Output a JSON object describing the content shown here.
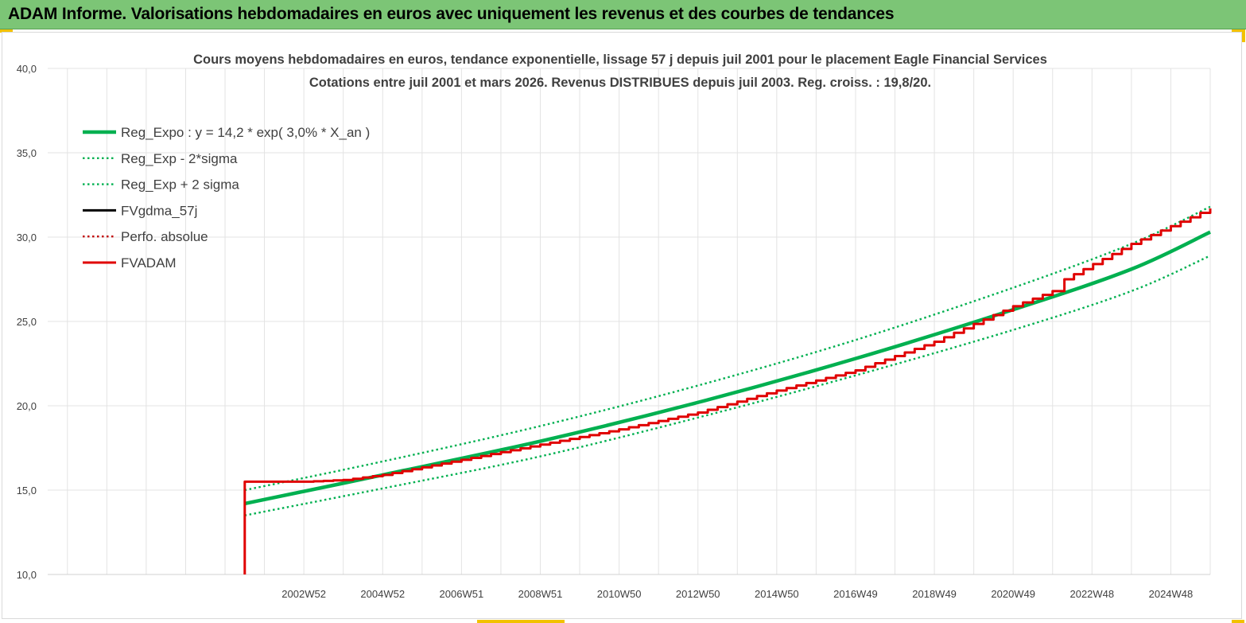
{
  "header": {
    "title": "ADAM Informe. Valorisations hebdomadaires en euros avec uniquement les revenus et des courbes de tendances",
    "background": "#7CC576"
  },
  "chart_data": {
    "type": "line",
    "title_line1": "Cours moyens hebdomadaires en euros, tendance exponentielle, lissage 57 j depuis juil 2001 pour le placement Eagle Financial Services",
    "title_line2": "Cotations entre juil 2001 et mars 2026. Revenus DISTRIBUES  depuis juil 2003. Reg. croiss. : 19,8/20.",
    "ylim": [
      10,
      40
    ],
    "y_ticks": [
      "10,0",
      "15,0",
      "20,0",
      "25,0",
      "30,0",
      "35,0",
      "40,0"
    ],
    "x_tick_labels": [
      "2002W52",
      "2004W52",
      "2006W51",
      "2008W51",
      "2010W50",
      "2012W50",
      "2014W50",
      "2016W49",
      "2018W49",
      "2020W49",
      "2022W48",
      "2024W48"
    ],
    "x_range_years": [
      1996.5,
      2026.0
    ],
    "x_tick_years": [
      2003.0,
      2005.0,
      2007.0,
      2009.0,
      2011.0,
      2013.0,
      2015.0,
      2017.0,
      2019.0,
      2021.0,
      2023.0,
      2025.0
    ],
    "grid": true,
    "legend_position": "top-left",
    "series": [
      {
        "name": "Reg_Expo : y = 14,2 * exp( 3,0% *  X_an )",
        "color": "#00B050",
        "style": "solid-thick",
        "x": [
          2001.5,
          2005,
          2009,
          2013,
          2017,
          2021,
          2024,
          2026
        ],
        "y": [
          14.2,
          15.9,
          17.9,
          20.2,
          22.8,
          25.7,
          28.1,
          30.3
        ]
      },
      {
        "name": "Reg_Exp - 2*sigma",
        "color": "#00B050",
        "style": "dotted",
        "x": [
          2001.5,
          2005,
          2009,
          2013,
          2017,
          2021,
          2024,
          2026
        ],
        "y": [
          13.5,
          15.1,
          17.0,
          19.3,
          21.8,
          24.5,
          26.8,
          28.9
        ]
      },
      {
        "name": "Reg_Exp + 2 sigma",
        "color": "#00B050",
        "style": "dotted",
        "x": [
          2001.5,
          2005,
          2009,
          2013,
          2017,
          2021,
          2024,
          2026
        ],
        "y": [
          15.0,
          16.7,
          18.8,
          21.2,
          23.9,
          27.0,
          29.6,
          31.8
        ]
      },
      {
        "name": "FVgdma_57j",
        "color": "#000000",
        "style": "solid",
        "x": [],
        "y": []
      },
      {
        "name": "Perfo. absolue",
        "color": "#C00000",
        "style": "dotted",
        "x": [],
        "y": []
      },
      {
        "name": "FVADAM",
        "color": "#E00000",
        "style": "solid",
        "x": [
          2001.5,
          2001.5,
          2003,
          2004,
          2005,
          2007,
          2009,
          2011,
          2013,
          2015,
          2017,
          2019,
          2021,
          2022,
          2022.3,
          2024,
          2026
        ],
        "y": [
          10.0,
          15.5,
          15.5,
          15.6,
          15.9,
          16.8,
          17.7,
          18.6,
          19.6,
          20.9,
          22.1,
          23.8,
          25.9,
          26.8,
          27.5,
          29.6,
          31.7
        ]
      }
    ]
  }
}
